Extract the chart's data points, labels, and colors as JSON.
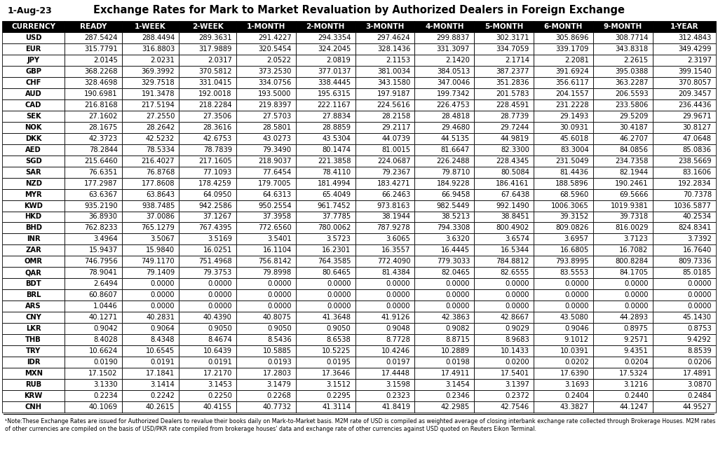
{
  "title": "Exchange Rates for Mark to Market Revaluation by Authorized Dealers in Foreign Exchange",
  "date": "1-Aug-23",
  "columns": [
    "CURRENCY",
    "READY",
    "1-WEEK",
    "2-WEEK",
    "1-MONTH",
    "2-MONTH",
    "3-MONTH",
    "4-MONTH",
    "5-MONTH",
    "6-MONTH",
    "9-MONTH",
    "1-YEAR"
  ],
  "rows": [
    [
      "USD",
      "287.5424",
      "288.4494",
      "289.3631",
      "291.4227",
      "294.3354",
      "297.4624",
      "299.8837",
      "302.3171",
      "305.8696",
      "308.7714",
      "312.4843"
    ],
    [
      "EUR",
      "315.7791",
      "316.8803",
      "317.9889",
      "320.5454",
      "324.2045",
      "328.1436",
      "331.3097",
      "334.7059",
      "339.1709",
      "343.8318",
      "349.4299"
    ],
    [
      "JPY",
      "2.0145",
      "2.0231",
      "2.0317",
      "2.0522",
      "2.0819",
      "2.1153",
      "2.1420",
      "2.1714",
      "2.2081",
      "2.2615",
      "2.3197"
    ],
    [
      "GBP",
      "368.2268",
      "369.3992",
      "370.5812",
      "373.2530",
      "377.0137",
      "381.0034",
      "384.0513",
      "387.2377",
      "391.6924",
      "395.0388",
      "399.1540"
    ],
    [
      "CHF",
      "328.4698",
      "329.7518",
      "331.0415",
      "334.0756",
      "338.4445",
      "343.1580",
      "347.0046",
      "351.2836",
      "356.6117",
      "363.2287",
      "370.8057"
    ],
    [
      "AUD",
      "190.6981",
      "191.3478",
      "192.0018",
      "193.5000",
      "195.6315",
      "197.9187",
      "199.7342",
      "201.5783",
      "204.1557",
      "206.5593",
      "209.3457"
    ],
    [
      "CAD",
      "216.8168",
      "217.5194",
      "218.2284",
      "219.8397",
      "222.1167",
      "224.5616",
      "226.4753",
      "228.4591",
      "231.2228",
      "233.5806",
      "236.4436"
    ],
    [
      "SEK",
      "27.1602",
      "27.2550",
      "27.3506",
      "27.5703",
      "27.8834",
      "28.2158",
      "28.4818",
      "28.7739",
      "29.1493",
      "29.5209",
      "29.9671"
    ],
    [
      "NOK",
      "28.1675",
      "28.2642",
      "28.3616",
      "28.5801",
      "28.8859",
      "29.2117",
      "29.4680",
      "29.7244",
      "30.0931",
      "30.4187",
      "30.8127"
    ],
    [
      "DKK",
      "42.3723",
      "42.5232",
      "42.6753",
      "43.0273",
      "43.5304",
      "44.0739",
      "44.5135",
      "44.9819",
      "45.6018",
      "46.2707",
      "47.0648"
    ],
    [
      "AED",
      "78.2844",
      "78.5334",
      "78.7839",
      "79.3490",
      "80.1474",
      "81.0015",
      "81.6647",
      "82.3300",
      "83.3004",
      "84.0856",
      "85.0836"
    ],
    [
      "SGD",
      "215.6460",
      "216.4027",
      "217.1605",
      "218.9037",
      "221.3858",
      "224.0687",
      "226.2488",
      "228.4345",
      "231.5049",
      "234.7358",
      "238.5669"
    ],
    [
      "SAR",
      "76.6351",
      "76.8768",
      "77.1093",
      "77.6454",
      "78.4110",
      "79.2367",
      "79.8710",
      "80.5084",
      "81.4436",
      "82.1944",
      "83.1606"
    ],
    [
      "NZD",
      "177.2987",
      "177.8608",
      "178.4259",
      "179.7005",
      "181.4994",
      "183.4271",
      "184.9228",
      "186.4161",
      "188.5896",
      "190.2461",
      "192.2834"
    ],
    [
      "MYR",
      "63.6367",
      "63.8643",
      "64.0950",
      "64.6313",
      "65.4049",
      "66.2463",
      "66.9458",
      "67.6438",
      "68.5960",
      "69.5666",
      "70.7378"
    ],
    [
      "KWD",
      "935.2190",
      "938.7485",
      "942.2586",
      "950.2554",
      "961.7452",
      "973.8163",
      "982.5449",
      "992.1490",
      "1006.3065",
      "1019.9381",
      "1036.5877"
    ],
    [
      "HKD",
      "36.8930",
      "37.0086",
      "37.1267",
      "37.3958",
      "37.7785",
      "38.1944",
      "38.5213",
      "38.8451",
      "39.3152",
      "39.7318",
      "40.2534"
    ],
    [
      "BHD",
      "762.8233",
      "765.1279",
      "767.4395",
      "772.6560",
      "780.0062",
      "787.9278",
      "794.3308",
      "800.4902",
      "809.0826",
      "816.0029",
      "824.8341"
    ],
    [
      "INR",
      "3.4964",
      "3.5067",
      "3.5169",
      "3.5401",
      "3.5723",
      "3.6065",
      "3.6320",
      "3.6574",
      "3.6957",
      "3.7123",
      "3.7392"
    ],
    [
      "ZAR",
      "15.9437",
      "15.9840",
      "16.0251",
      "16.1104",
      "16.2301",
      "16.3557",
      "16.4445",
      "16.5344",
      "16.6805",
      "16.7082",
      "16.7640"
    ],
    [
      "OMR",
      "746.7956",
      "749.1170",
      "751.4968",
      "756.8142",
      "764.3585",
      "772.4090",
      "779.3033",
      "784.8812",
      "793.8995",
      "800.8284",
      "809.7336"
    ],
    [
      "QAR",
      "78.9041",
      "79.1409",
      "79.3753",
      "79.8998",
      "80.6465",
      "81.4384",
      "82.0465",
      "82.6555",
      "83.5553",
      "84.1705",
      "85.0185"
    ],
    [
      "BDT",
      "2.6494",
      "0.0000",
      "0.0000",
      "0.0000",
      "0.0000",
      "0.0000",
      "0.0000",
      "0.0000",
      "0.0000",
      "0.0000",
      "0.0000"
    ],
    [
      "BRL",
      "60.8607",
      "0.0000",
      "0.0000",
      "0.0000",
      "0.0000",
      "0.0000",
      "0.0000",
      "0.0000",
      "0.0000",
      "0.0000",
      "0.0000"
    ],
    [
      "ARS",
      "1.0446",
      "0.0000",
      "0.0000",
      "0.0000",
      "0.0000",
      "0.0000",
      "0.0000",
      "0.0000",
      "0.0000",
      "0.0000",
      "0.0000"
    ],
    [
      "CNY",
      "40.1271",
      "40.2831",
      "40.4390",
      "40.8075",
      "41.3648",
      "41.9126",
      "42.3863",
      "42.8667",
      "43.5080",
      "44.2893",
      "45.1430"
    ],
    [
      "LKR",
      "0.9042",
      "0.9064",
      "0.9050",
      "0.9050",
      "0.9050",
      "0.9048",
      "0.9082",
      "0.9029",
      "0.9046",
      "0.8975",
      "0.8753"
    ],
    [
      "THB",
      "8.4028",
      "8.4348",
      "8.4674",
      "8.5436",
      "8.6538",
      "8.7728",
      "8.8715",
      "8.9683",
      "9.1012",
      "9.2571",
      "9.4292"
    ],
    [
      "TRY",
      "10.6624",
      "10.6545",
      "10.6439",
      "10.5885",
      "10.5225",
      "10.4246",
      "10.2889",
      "10.1433",
      "10.0391",
      "9.4351",
      "8.8539"
    ],
    [
      "IDR",
      "0.0190",
      "0.0191",
      "0.0191",
      "0.0193",
      "0.0195",
      "0.0197",
      "0.0198",
      "0.0200",
      "0.0202",
      "0.0204",
      "0.0206"
    ],
    [
      "MXN",
      "17.1502",
      "17.1841",
      "17.2170",
      "17.2803",
      "17.3646",
      "17.4448",
      "17.4911",
      "17.5401",
      "17.6390",
      "17.5324",
      "17.4891"
    ],
    [
      "RUB",
      "3.1330",
      "3.1414",
      "3.1453",
      "3.1479",
      "3.1512",
      "3.1598",
      "3.1454",
      "3.1397",
      "3.1693",
      "3.1216",
      "3.0870"
    ],
    [
      "KRW",
      "0.2234",
      "0.2242",
      "0.2250",
      "0.2268",
      "0.2295",
      "0.2323",
      "0.2346",
      "0.2372",
      "0.2404",
      "0.2440",
      "0.2484"
    ],
    [
      "CNH",
      "40.1069",
      "40.2615",
      "40.4155",
      "40.7732",
      "41.3114",
      "41.8419",
      "42.2985",
      "42.7546",
      "43.3827",
      "44.1247",
      "44.9527"
    ]
  ],
  "footnote": "¹Note:These Exchange Rates are issued for Authorized Dealers to revalue their books daily on Mark-to-Market basis. M2M rate of USD is compiled as weighted average of closing interbank exchange rate collected through Brokerage Houses. M2M rates of other currencies are compiled on the basis of USD/PKR rate compiled from brokerage houses' data and exchange rate of other currencies against USD quoted on Reuters Eikon Terminal.",
  "header_bg": "#000000",
  "header_fg": "#FFFFFF",
  "row_bg": "#FFFFFF",
  "border_color": "#000000",
  "title_fontsize": 10.5,
  "date_fontsize": 9,
  "header_fontsize": 7.5,
  "cell_fontsize": 7.2,
  "footnote_fontsize": 5.8
}
